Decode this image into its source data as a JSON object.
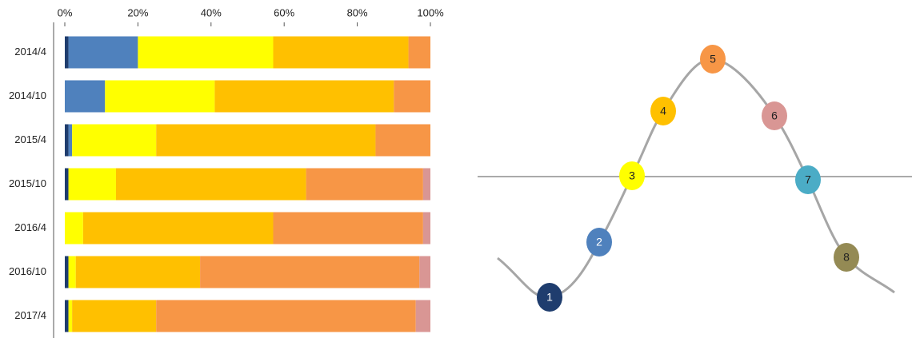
{
  "chart_data": {
    "type": "stacked-bar-horizontal",
    "categories": [
      "2014/4",
      "2014/10",
      "2015/4",
      "2015/10",
      "2016/4",
      "2016/10",
      "2017/4"
    ],
    "series": [
      {
        "color": "#1f3d6e",
        "values": [
          1,
          0,
          1,
          1,
          0,
          1,
          1
        ]
      },
      {
        "color": "#4f81bd",
        "values": [
          19,
          11,
          1,
          0,
          0,
          0,
          0
        ]
      },
      {
        "color": "#ffff00",
        "values": [
          37,
          30,
          23,
          13,
          5,
          2,
          1
        ]
      },
      {
        "color": "#ffc000",
        "values": [
          37,
          49,
          60,
          52,
          52,
          34,
          23
        ]
      },
      {
        "color": "#f79646",
        "values": [
          6,
          10,
          15,
          32,
          41,
          60,
          71
        ]
      },
      {
        "color": "#d99694",
        "values": [
          0,
          0,
          0,
          2,
          2,
          3,
          4
        ]
      }
    ],
    "xlim": [
      0,
      100
    ],
    "xticks": [
      {
        "value": 0,
        "label": "0%"
      },
      {
        "value": 20,
        "label": "20%"
      },
      {
        "value": 40,
        "label": "40%"
      },
      {
        "value": 60,
        "label": "60%"
      },
      {
        "value": 80,
        "label": "80%"
      },
      {
        "value": 100,
        "label": "100%"
      }
    ]
  },
  "diagram": {
    "nodes": [
      {
        "label": "1",
        "color": "#1f3d6e"
      },
      {
        "label": "2",
        "color": "#4f81bd"
      },
      {
        "label": "3",
        "color": "#ffff00"
      },
      {
        "label": "4",
        "color": "#ffc000"
      },
      {
        "label": "5",
        "color": "#f79646"
      },
      {
        "label": "6",
        "color": "#d99694"
      },
      {
        "label": "7",
        "color": "#4bacc6"
      },
      {
        "label": "8",
        "color": "#948a54"
      }
    ]
  }
}
